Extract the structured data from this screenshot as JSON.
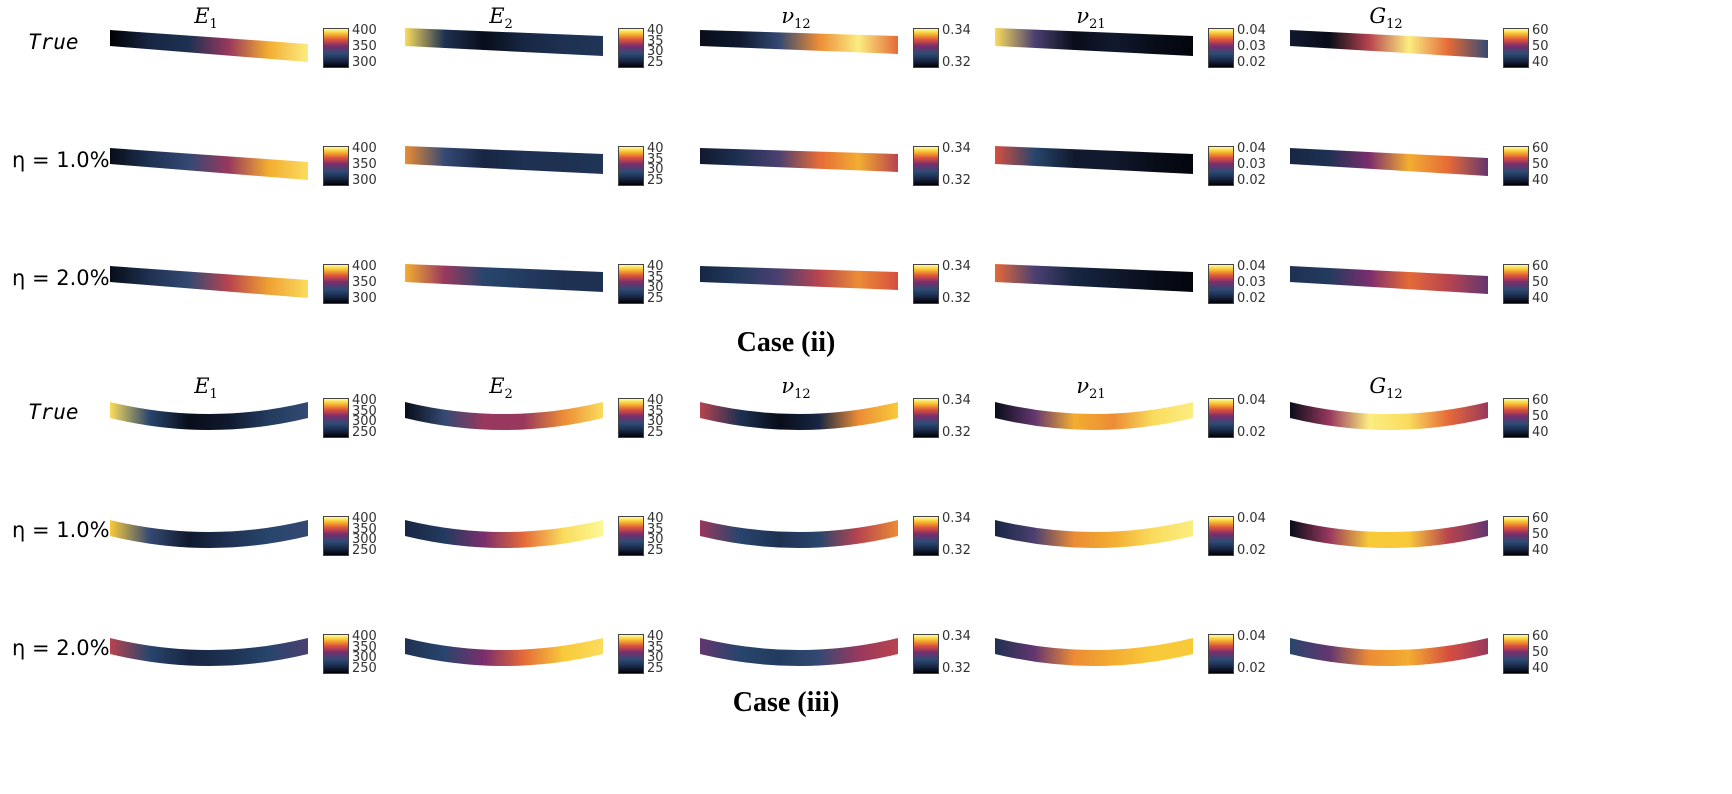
{
  "colormap": [
    "#000004",
    "#1a2a4a",
    "#2c4c74",
    "#7b2d6d",
    "#e0533b",
    "#f8c42e",
    "#fcffa4"
  ],
  "columns": [
    {
      "sym": "E",
      "sub": "1"
    },
    {
      "sym": "E",
      "sub": "2"
    },
    {
      "sym": "ν",
      "sub": "12"
    },
    {
      "sym": "ν",
      "sub": "21"
    },
    {
      "sym": "G",
      "sub": "12"
    }
  ],
  "row_labels": [
    "True",
    "η = 1.0%",
    "η = 2.0%"
  ],
  "cases": [
    {
      "title": "Case (ii)",
      "beam_shape": "straight-tapering",
      "colorbars": [
        [
          [
            "400",
            "350",
            "300"
          ],
          [
            "400",
            "350",
            "300"
          ],
          [
            "400",
            "350",
            "300"
          ]
        ],
        [
          [
            "40",
            "35",
            "30",
            "25"
          ],
          [
            "40",
            "35",
            "30",
            "25"
          ],
          [
            "40",
            "35",
            "30",
            "25"
          ]
        ],
        [
          [
            "0.34",
            "0.32"
          ],
          [
            "0.34",
            "0.32"
          ],
          [
            "0.34",
            "0.32"
          ]
        ],
        [
          [
            "0.04",
            "0.03",
            "0.02"
          ],
          [
            "0.04",
            "0.03",
            "0.02"
          ],
          [
            "0.04",
            "0.03",
            "0.02"
          ]
        ],
        [
          [
            "60",
            "50",
            "40"
          ],
          [
            "60",
            "50",
            "40"
          ],
          [
            "60",
            "50",
            "40"
          ]
        ]
      ],
      "fields": [
        [
          [
            0.0,
            0.15,
            0.2,
            0.55,
            0.8,
            0.95
          ],
          [
            0.05,
            0.2,
            0.35,
            0.55,
            0.8,
            0.9
          ],
          [
            0.05,
            0.2,
            0.35,
            0.6,
            0.78,
            0.9
          ]
        ],
        [
          [
            0.9,
            0.2,
            0.05,
            0.15,
            0.2,
            0.22
          ],
          [
            0.75,
            0.35,
            0.15,
            0.2,
            0.2,
            0.22
          ],
          [
            0.8,
            0.55,
            0.3,
            0.25,
            0.2,
            0.2
          ]
        ],
        [
          [
            0.05,
            0.1,
            0.35,
            0.75,
            0.95,
            0.7
          ],
          [
            0.1,
            0.2,
            0.4,
            0.7,
            0.8,
            0.6
          ],
          [
            0.15,
            0.25,
            0.4,
            0.6,
            0.75,
            0.65
          ]
        ],
        [
          [
            0.9,
            0.4,
            0.05,
            0.1,
            0.05,
            0.02
          ],
          [
            0.65,
            0.3,
            0.1,
            0.1,
            0.05,
            0.02
          ],
          [
            0.7,
            0.4,
            0.15,
            0.1,
            0.05,
            0.02
          ]
        ],
        [
          [
            0.1,
            0.05,
            0.6,
            0.95,
            0.7,
            0.35
          ],
          [
            0.15,
            0.2,
            0.5,
            0.8,
            0.7,
            0.45
          ],
          [
            0.2,
            0.25,
            0.5,
            0.7,
            0.6,
            0.45
          ]
        ]
      ]
    },
    {
      "title": "Case (iii)",
      "beam_shape": "curved",
      "colorbars": [
        [
          [
            "400",
            "350",
            "300",
            "250"
          ],
          [
            "400",
            "350",
            "300",
            "250"
          ],
          [
            "400",
            "350",
            "300",
            "250"
          ]
        ],
        [
          [
            "40",
            "35",
            "30",
            "25"
          ],
          [
            "40",
            "35",
            "30",
            "25"
          ],
          [
            "40",
            "35",
            "30",
            "25"
          ]
        ],
        [
          [
            "0.34",
            "0.32"
          ],
          [
            "0.34",
            "0.32"
          ],
          [
            "0.34",
            "0.32"
          ]
        ],
        [
          [
            "0.04",
            "0.02"
          ],
          [
            "0.04",
            "0.02"
          ],
          [
            "0.04",
            "0.02"
          ]
        ],
        [
          [
            "60",
            "50",
            "40"
          ],
          [
            "60",
            "50",
            "40"
          ],
          [
            "60",
            "50",
            "40"
          ]
        ]
      ],
      "fields": [
        [
          [
            0.9,
            0.3,
            0.05,
            0.1,
            0.25,
            0.35
          ],
          [
            0.85,
            0.35,
            0.1,
            0.2,
            0.3,
            0.35
          ],
          [
            0.6,
            0.3,
            0.15,
            0.2,
            0.3,
            0.4
          ]
        ],
        [
          [
            0.05,
            0.35,
            0.55,
            0.55,
            0.75,
            0.9
          ],
          [
            0.15,
            0.25,
            0.5,
            0.7,
            0.9,
            0.98
          ],
          [
            0.2,
            0.3,
            0.5,
            0.7,
            0.85,
            0.9
          ]
        ],
        [
          [
            0.6,
            0.2,
            0.05,
            0.15,
            0.75,
            0.85
          ],
          [
            0.55,
            0.3,
            0.2,
            0.3,
            0.6,
            0.75
          ],
          [
            0.45,
            0.3,
            0.25,
            0.35,
            0.55,
            0.6
          ]
        ],
        [
          [
            0.05,
            0.45,
            0.8,
            0.75,
            0.9,
            0.95
          ],
          [
            0.15,
            0.4,
            0.75,
            0.8,
            0.9,
            0.95
          ],
          [
            0.2,
            0.45,
            0.75,
            0.8,
            0.85,
            0.85
          ]
        ],
        [
          [
            0.05,
            0.55,
            0.95,
            0.9,
            0.7,
            0.55
          ],
          [
            0.05,
            0.55,
            0.85,
            0.85,
            0.6,
            0.45
          ],
          [
            0.3,
            0.45,
            0.75,
            0.8,
            0.65,
            0.55
          ]
        ]
      ]
    }
  ]
}
